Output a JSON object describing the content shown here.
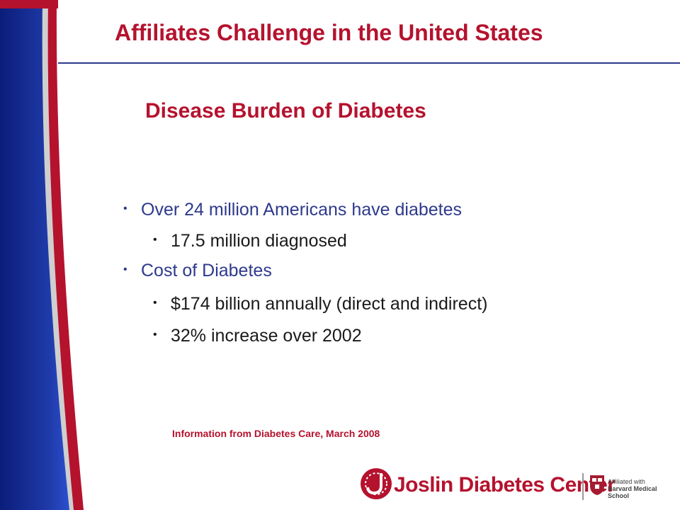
{
  "slide": {
    "title": "Affiliates Challenge in the United States",
    "subtitle": "Disease Burden of Diabetes",
    "bullets": [
      {
        "level": 1,
        "text": "Over 24 million Americans have diabetes"
      },
      {
        "level": 2,
        "text": "17.5 million diagnosed"
      },
      {
        "level": 1,
        "text": "Cost of Diabetes"
      },
      {
        "level": 2,
        "text": "$174 billion annually (direct and indirect)"
      },
      {
        "level": 2,
        "text": "32% increase over 2002"
      }
    ],
    "source": "Information from Diabetes Care, March 2008"
  },
  "logo": {
    "name": "Joslin Diabetes Center",
    "affiliation_line1": "Affiliated with",
    "affiliation_line2": "Harvard Medical School"
  },
  "colors": {
    "accent_red": "#b5122e",
    "navy": "#2e3a8c",
    "text": "#1a1a1a",
    "background": "#ffffff"
  }
}
